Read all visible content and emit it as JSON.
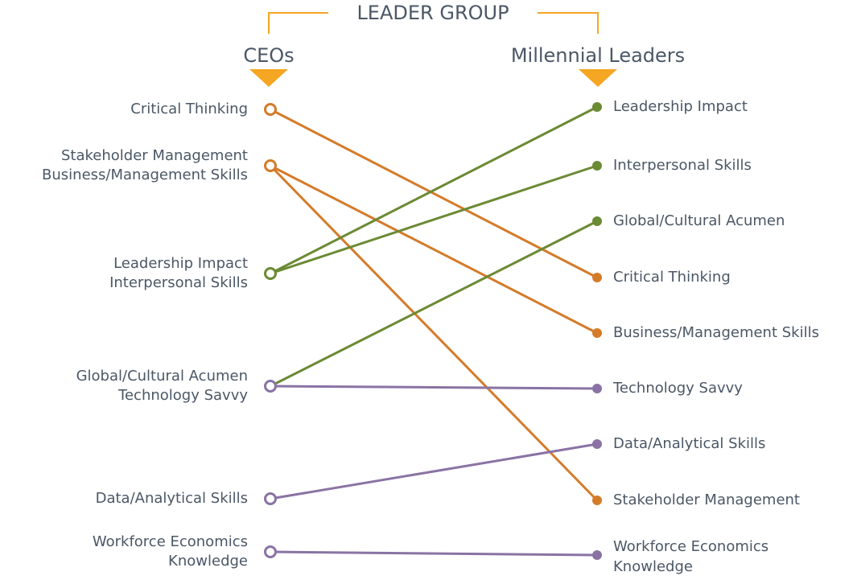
{
  "header": {
    "title": "LEADER GROUP"
  },
  "columns": [
    "CEOs",
    "Millennial Leaders"
  ],
  "left_nodes": [
    {
      "lines": [
        "Critical Thinking"
      ],
      "color": "#d47b2a"
    },
    {
      "lines": [
        "Stakeholder Management",
        "Business/Management Skills"
      ],
      "color": "#d47b2a"
    },
    {
      "lines": [
        "Leadership Impact",
        "Interpersonal Skills"
      ],
      "color": "#6b8a34"
    },
    {
      "lines": [
        "Global/Cultural Acumen",
        "Technology Savvy"
      ],
      "color": "#8a73a4"
    },
    {
      "lines": [
        "Data/Analytical Skills"
      ],
      "color": "#8a73a4"
    },
    {
      "lines": [
        "Workforce Economics",
        "Knowledge"
      ],
      "color": "#8a73a4"
    }
  ],
  "right_nodes": [
    {
      "lines": [
        "Leadership Impact"
      ],
      "color": "#6b8a34"
    },
    {
      "lines": [
        "Interpersonal Skills"
      ],
      "color": "#6b8a34"
    },
    {
      "lines": [
        "Global/Cultural Acumen"
      ],
      "color": "#6b8a34"
    },
    {
      "lines": [
        "Critical Thinking"
      ],
      "color": "#d47b2a"
    },
    {
      "lines": [
        "Business/Management Skills"
      ],
      "color": "#d47b2a"
    },
    {
      "lines": [
        "Technology Savvy"
      ],
      "color": "#8a73a4"
    },
    {
      "lines": [
        "Data/Analytical Skills"
      ],
      "color": "#8a73a4"
    },
    {
      "lines": [
        "Stakeholder Management"
      ],
      "color": "#d47b2a"
    },
    {
      "lines": [
        "Workforce Economics",
        "Knowledge"
      ],
      "color": "#8a73a4"
    }
  ],
  "edges": [
    {
      "from": 0,
      "to": 3,
      "color": "#d47b2a"
    },
    {
      "from": 1,
      "to": 4,
      "color": "#d47b2a"
    },
    {
      "from": 1,
      "to": 7,
      "color": "#d47b2a"
    },
    {
      "from": 2,
      "to": 0,
      "color": "#6b8a34"
    },
    {
      "from": 2,
      "to": 1,
      "color": "#6b8a34"
    },
    {
      "from": 3,
      "to": 2,
      "color": "#6b8a34"
    },
    {
      "from": 3,
      "to": 5,
      "color": "#8a73a4"
    },
    {
      "from": 4,
      "to": 6,
      "color": "#8a73a4"
    },
    {
      "from": 5,
      "to": 8,
      "color": "#8a73a4"
    }
  ]
}
